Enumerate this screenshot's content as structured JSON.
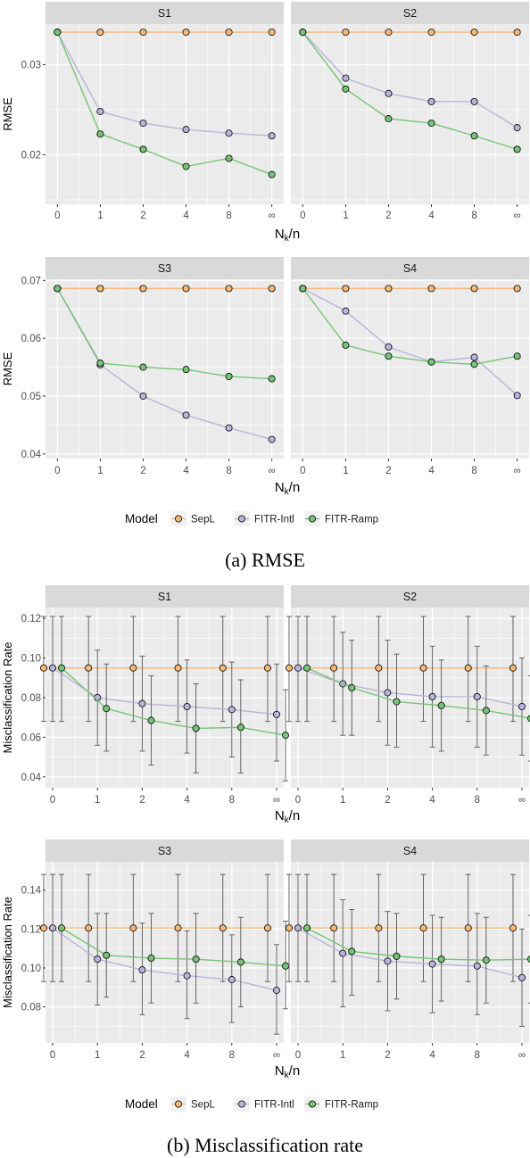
{
  "colors": {
    "SepL": "#f5b878",
    "FITR-Intl": "#b8b4dc",
    "FITR-Ramp": "#76c476",
    "panel_bg": "#ebebeb",
    "strip_bg": "#d9d9d9",
    "grid": "#ffffff"
  },
  "captions": {
    "a": "(a) RMSE",
    "b": "(b) Misclassification rate"
  },
  "chart_data": [
    {
      "id": "rmse",
      "type": "line",
      "ylabel": "RMSE",
      "xlabel_main": "N",
      "xlabel_sub": "k",
      "xlabel_suffix": "/n",
      "x_ticks": [
        "0",
        "1",
        "2",
        "4",
        "8",
        "∞"
      ],
      "legend": {
        "title": "Model",
        "position": "bottom",
        "entries": [
          "SepL",
          "FITR-Intl",
          "FITR-Ramp"
        ]
      },
      "rows": [
        {
          "ylim": [
            0.0145,
            0.0345
          ],
          "y_ticks": [
            0.02,
            0.03
          ],
          "y_tick_labels": [
            "0.02",
            "0.03"
          ]
        },
        {
          "ylim": [
            0.0392,
            0.0702
          ],
          "y_ticks": [
            0.04,
            0.05,
            0.06,
            0.07
          ],
          "y_tick_labels": [
            "0.04",
            "0.05",
            "0.06",
            "0.07"
          ]
        }
      ],
      "panels": [
        {
          "strip": "S1",
          "row": 0,
          "col": 0,
          "series": [
            {
              "name": "SepL",
              "values": [
                0.0336,
                0.0336,
                0.0336,
                0.0336,
                0.0336,
                0.0336
              ]
            },
            {
              "name": "FITR-Intl",
              "values": [
                0.0336,
                0.0248,
                0.0235,
                0.0228,
                0.0224,
                0.0221
              ]
            },
            {
              "name": "FITR-Ramp",
              "values": [
                0.0336,
                0.0223,
                0.0206,
                0.0187,
                0.0196,
                0.0178
              ]
            }
          ]
        },
        {
          "strip": "S2",
          "row": 0,
          "col": 1,
          "series": [
            {
              "name": "SepL",
              "values": [
                0.0336,
                0.0336,
                0.0336,
                0.0336,
                0.0336,
                0.0336
              ]
            },
            {
              "name": "FITR-Intl",
              "values": [
                0.0336,
                0.0285,
                0.0268,
                0.0259,
                0.0259,
                0.023
              ]
            },
            {
              "name": "FITR-Ramp",
              "values": [
                0.0336,
                0.0273,
                0.024,
                0.0235,
                0.0221,
                0.0206
              ]
            }
          ]
        },
        {
          "strip": "S3",
          "row": 1,
          "col": 0,
          "series": [
            {
              "name": "SepL",
              "values": [
                0.0686,
                0.0686,
                0.0686,
                0.0686,
                0.0686,
                0.0686
              ]
            },
            {
              "name": "FITR-Intl",
              "values": [
                0.0686,
                0.0554,
                0.05,
                0.0467,
                0.0445,
                0.0425
              ]
            },
            {
              "name": "FITR-Ramp",
              "values": [
                0.0686,
                0.0557,
                0.055,
                0.0546,
                0.0534,
                0.053
              ]
            }
          ]
        },
        {
          "strip": "S4",
          "row": 1,
          "col": 1,
          "series": [
            {
              "name": "SepL",
              "values": [
                0.0686,
                0.0686,
                0.0686,
                0.0686,
                0.0686,
                0.0686
              ]
            },
            {
              "name": "FITR-Intl",
              "values": [
                0.0686,
                0.0647,
                0.0585,
                0.0559,
                0.0567,
                0.0501
              ]
            },
            {
              "name": "FITR-Ramp",
              "values": [
                0.0686,
                0.0588,
                0.0569,
                0.0559,
                0.0555,
                0.0569
              ]
            }
          ]
        }
      ]
    },
    {
      "id": "misclass",
      "type": "line",
      "ylabel": "Misclassification Rate",
      "xlabel_main": "N",
      "xlabel_sub": "k",
      "xlabel_suffix": "/n",
      "x_ticks": [
        "0",
        "1",
        "2",
        "4",
        "8",
        "∞"
      ],
      "dodge": [
        -0.2,
        0,
        0.2
      ],
      "legend": {
        "title": "Model",
        "position": "bottom",
        "entries": [
          "SepL",
          "FITR-Intl",
          "FITR-Ramp"
        ]
      },
      "rows": [
        {
          "ylim": [
            0.0345,
            0.1255
          ],
          "y_ticks": [
            0.04,
            0.06,
            0.08,
            0.1,
            0.12
          ],
          "y_tick_labels": [
            "0.04",
            "0.06",
            "0.08",
            "0.10",
            "0.12"
          ]
        },
        {
          "ylim": [
            0.0615,
            0.1545
          ],
          "y_ticks": [
            0.08,
            0.1,
            0.12,
            0.14
          ],
          "y_tick_labels": [
            "0.08",
            "0.10",
            "0.12",
            "0.14"
          ]
        }
      ],
      "panels": [
        {
          "strip": "S1",
          "row": 0,
          "col": 0,
          "series": [
            {
              "name": "SepL",
              "values": [
                0.095,
                0.095,
                0.095,
                0.095,
                0.095,
                0.095
              ],
              "lower": [
                0.068,
                0.068,
                0.068,
                0.068,
                0.068,
                0.068
              ],
              "upper": [
                0.121,
                0.121,
                0.121,
                0.121,
                0.121,
                0.121
              ]
            },
            {
              "name": "FITR-Intl",
              "values": [
                0.095,
                0.08,
                0.077,
                0.0755,
                0.074,
                0.0715
              ],
              "lower": [
                0.068,
                0.056,
                0.053,
                0.052,
                0.05,
                0.048
              ],
              "upper": [
                0.121,
                0.104,
                0.101,
                0.099,
                0.098,
                0.097
              ]
            },
            {
              "name": "FITR-Ramp",
              "values": [
                0.095,
                0.0745,
                0.0685,
                0.0645,
                0.065,
                0.061
              ],
              "lower": [
                0.068,
                0.053,
                0.046,
                0.042,
                0.042,
                0.038
              ],
              "upper": [
                0.121,
                0.097,
                0.091,
                0.087,
                0.089,
                0.084
              ]
            }
          ]
        },
        {
          "strip": "S2",
          "row": 0,
          "col": 1,
          "series": [
            {
              "name": "SepL",
              "values": [
                0.095,
                0.095,
                0.095,
                0.095,
                0.095,
                0.095
              ],
              "lower": [
                0.068,
                0.068,
                0.068,
                0.068,
                0.068,
                0.068
              ],
              "upper": [
                0.121,
                0.121,
                0.121,
                0.121,
                0.121,
                0.121
              ]
            },
            {
              "name": "FITR-Intl",
              "values": [
                0.095,
                0.087,
                0.0825,
                0.0805,
                0.0805,
                0.0755
              ],
              "lower": [
                0.068,
                0.061,
                0.056,
                0.055,
                0.055,
                0.051
              ],
              "upper": [
                0.121,
                0.113,
                0.109,
                0.106,
                0.106,
                0.1
              ]
            },
            {
              "name": "FITR-Ramp",
              "values": [
                0.095,
                0.085,
                0.078,
                0.076,
                0.0735,
                0.0695
              ],
              "lower": [
                0.068,
                0.061,
                0.055,
                0.053,
                0.051,
                0.048
              ],
              "upper": [
                0.121,
                0.109,
                0.102,
                0.099,
                0.096,
                0.091
              ]
            }
          ]
        },
        {
          "strip": "S3",
          "row": 1,
          "col": 0,
          "series": [
            {
              "name": "SepL",
              "values": [
                0.1205,
                0.1205,
                0.1205,
                0.1205,
                0.1205,
                0.1205
              ],
              "lower": [
                0.093,
                0.093,
                0.093,
                0.093,
                0.093,
                0.093
              ],
              "upper": [
                0.148,
                0.148,
                0.148,
                0.148,
                0.148,
                0.148
              ]
            },
            {
              "name": "FITR-Intl",
              "values": [
                0.1205,
                0.1045,
                0.099,
                0.096,
                0.094,
                0.0885
              ],
              "lower": [
                0.093,
                0.081,
                0.076,
                0.074,
                0.072,
                0.066
              ],
              "upper": [
                0.148,
                0.128,
                0.123,
                0.119,
                0.117,
                0.112
              ]
            },
            {
              "name": "FITR-Ramp",
              "values": [
                0.1205,
                0.1065,
                0.105,
                0.1045,
                0.103,
                0.101
              ],
              "lower": [
                0.093,
                0.085,
                0.082,
                0.082,
                0.08,
                0.079
              ],
              "upper": [
                0.148,
                0.128,
                0.128,
                0.128,
                0.126,
                0.124
              ]
            }
          ]
        },
        {
          "strip": "S4",
          "row": 1,
          "col": 1,
          "series": [
            {
              "name": "SepL",
              "values": [
                0.1205,
                0.1205,
                0.1205,
                0.1205,
                0.1205,
                0.1205
              ],
              "lower": [
                0.093,
                0.093,
                0.093,
                0.093,
                0.093,
                0.093
              ],
              "upper": [
                0.148,
                0.148,
                0.148,
                0.148,
                0.148,
                0.148
              ]
            },
            {
              "name": "FITR-Intl",
              "values": [
                0.1205,
                0.1075,
                0.1035,
                0.102,
                0.101,
                0.095
              ],
              "lower": [
                0.093,
                0.08,
                0.078,
                0.077,
                0.076,
                0.07
              ],
              "upper": [
                0.148,
                0.135,
                0.129,
                0.127,
                0.128,
                0.12
              ]
            },
            {
              "name": "FITR-Ramp",
              "values": [
                0.1205,
                0.1085,
                0.106,
                0.1045,
                0.104,
                0.1045
              ],
              "lower": [
                0.093,
                0.086,
                0.084,
                0.083,
                0.082,
                0.082
              ],
              "upper": [
                0.148,
                0.13,
                0.128,
                0.126,
                0.126,
                0.127
              ]
            }
          ]
        }
      ]
    }
  ]
}
